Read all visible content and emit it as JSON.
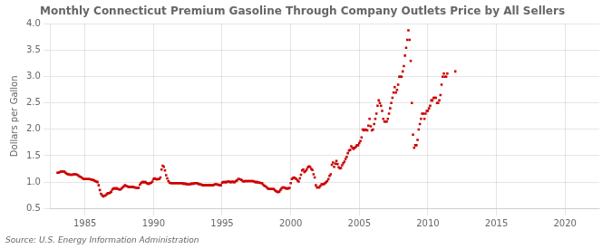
{
  "chart_data": {
    "type": "scatter",
    "title": "Monthly Connecticut Premium Gasoline Through Company Outlets Price by All Sellers",
    "ylabel": "Dollars per Gallon",
    "annotations": [
      "Source: U.S. Energy Information Administration"
    ],
    "color": "#cc0000",
    "marker": "square",
    "grid": true,
    "xlim": [
      1982.5,
      2022.5
    ],
    "ylim": [
      0.5,
      4.0
    ],
    "xticks": [
      1985,
      1990,
      1995,
      2000,
      2005,
      2010,
      2015,
      2020
    ],
    "yticks": [
      0.5,
      {
        "value": 1.0,
        "label": "1.0"
      },
      1.5,
      {
        "value": 2.0,
        "label": "2.0"
      },
      2.5,
      {
        "value": 3.0,
        "label": "3.0"
      },
      3.5,
      {
        "value": 4.0,
        "label": "4.0"
      }
    ],
    "x": [
      1983.0,
      1983.083,
      1983.167,
      1983.25,
      1983.333,
      1983.417,
      1983.5,
      1983.583,
      1983.667,
      1983.75,
      1983.833,
      1983.917,
      1984.0,
      1984.083,
      1984.167,
      1984.25,
      1984.333,
      1984.417,
      1984.5,
      1984.583,
      1984.667,
      1984.75,
      1984.833,
      1984.917,
      1985.0,
      1985.083,
      1985.167,
      1985.25,
      1985.333,
      1985.417,
      1985.5,
      1985.583,
      1985.667,
      1985.75,
      1985.833,
      1985.917,
      1986.0,
      1986.083,
      1986.167,
      1986.25,
      1986.333,
      1986.417,
      1986.5,
      1986.583,
      1986.667,
      1986.75,
      1986.833,
      1986.917,
      1987.0,
      1987.083,
      1987.167,
      1987.25,
      1987.333,
      1987.417,
      1987.5,
      1987.583,
      1987.667,
      1987.75,
      1987.833,
      1987.917,
      1988.0,
      1988.083,
      1988.167,
      1988.25,
      1988.333,
      1988.417,
      1988.5,
      1988.583,
      1988.667,
      1988.75,
      1988.833,
      1988.917,
      1989.0,
      1989.083,
      1989.167,
      1989.25,
      1989.333,
      1989.417,
      1989.5,
      1989.583,
      1989.667,
      1989.75,
      1989.833,
      1989.917,
      1990.0,
      1990.083,
      1990.167,
      1990.25,
      1990.333,
      1990.417,
      1990.5,
      1990.583,
      1990.667,
      1990.75,
      1990.833,
      1990.917,
      1991.0,
      1991.083,
      1991.167,
      1991.25,
      1991.333,
      1991.417,
      1991.5,
      1991.583,
      1991.667,
      1991.75,
      1991.833,
      1991.917,
      1992.0,
      1992.083,
      1992.167,
      1992.25,
      1992.333,
      1992.417,
      1992.5,
      1992.583,
      1992.667,
      1992.75,
      1992.833,
      1992.917,
      1993.0,
      1993.083,
      1993.167,
      1993.25,
      1993.333,
      1993.417,
      1993.5,
      1993.583,
      1993.667,
      1993.75,
      1993.833,
      1993.917,
      1994.0,
      1994.083,
      1994.167,
      1994.25,
      1994.333,
      1994.417,
      1994.5,
      1994.583,
      1994.667,
      1994.75,
      1994.833,
      1994.917,
      1995.0,
      1995.083,
      1995.167,
      1995.25,
      1995.333,
      1995.417,
      1995.5,
      1995.583,
      1995.667,
      1995.75,
      1995.833,
      1995.917,
      1996.0,
      1996.083,
      1996.167,
      1996.25,
      1996.333,
      1996.417,
      1996.5,
      1996.583,
      1996.667,
      1996.75,
      1996.833,
      1996.917,
      1997.0,
      1997.083,
      1997.167,
      1997.25,
      1997.333,
      1997.417,
      1997.5,
      1997.583,
      1997.667,
      1997.75,
      1997.833,
      1997.917,
      1998.0,
      1998.083,
      1998.167,
      1998.25,
      1998.333,
      1998.417,
      1998.5,
      1998.583,
      1998.667,
      1998.75,
      1998.833,
      1998.917,
      1999.0,
      1999.083,
      1999.167,
      1999.25,
      1999.333,
      1999.417,
      1999.5,
      1999.583,
      1999.667,
      1999.75,
      1999.833,
      1999.917,
      2000.0,
      2000.083,
      2000.167,
      2000.25,
      2000.333,
      2000.417,
      2000.5,
      2000.583,
      2000.667,
      2000.75,
      2000.833,
      2000.917,
      2001.0,
      2001.083,
      2001.167,
      2001.25,
      2001.333,
      2001.417,
      2001.5,
      2001.583,
      2001.667,
      2001.75,
      2001.833,
      2001.917,
      2002.0,
      2002.083,
      2002.167,
      2002.25,
      2002.333,
      2002.417,
      2002.5,
      2002.583,
      2002.667,
      2002.75,
      2002.833,
      2002.917,
      2003.0,
      2003.083,
      2003.167,
      2003.25,
      2003.333,
      2003.417,
      2003.5,
      2003.583,
      2003.667,
      2003.75,
      2003.833,
      2003.917,
      2004.0,
      2004.083,
      2004.167,
      2004.25,
      2004.333,
      2004.417,
      2004.5,
      2004.583,
      2004.667,
      2004.75,
      2004.833,
      2004.917,
      2005.0,
      2005.083,
      2005.167,
      2005.25,
      2005.333,
      2005.417,
      2005.5,
      2005.583,
      2005.667,
      2005.75,
      2005.833,
      2005.917,
      2006.0,
      2006.083,
      2006.167,
      2006.25,
      2006.333,
      2006.417,
      2006.5,
      2006.583,
      2006.667,
      2006.75,
      2006.833,
      2006.917,
      2007.0,
      2007.083,
      2007.167,
      2007.25,
      2007.333,
      2007.417,
      2007.5,
      2007.583,
      2007.667,
      2007.75,
      2007.833,
      2007.917,
      2008.0,
      2008.083,
      2008.167,
      2008.25,
      2008.333,
      2008.417,
      2008.5,
      2008.583,
      2008.667,
      2008.75,
      2008.833,
      2008.917,
      2009.0,
      2009.083,
      2009.167,
      2009.25,
      2009.333,
      2009.417,
      2009.5,
      2009.583,
      2009.667,
      2009.75,
      2009.833,
      2009.917,
      2010.0,
      2010.083,
      2010.167,
      2010.25,
      2010.333,
      2010.417,
      2010.5,
      2010.583,
      2010.667,
      2010.75,
      2010.833,
      2010.917,
      2011.0,
      2011.083,
      2011.167,
      2011.25,
      2011.333,
      2011.417,
      2012.0
    ],
    "values": [
      1.179,
      1.179,
      1.189,
      1.199,
      1.199,
      1.199,
      1.199,
      1.179,
      1.159,
      1.149,
      1.149,
      1.139,
      1.139,
      1.139,
      1.149,
      1.149,
      1.149,
      1.139,
      1.129,
      1.109,
      1.099,
      1.089,
      1.069,
      1.059,
      1.059,
      1.059,
      1.059,
      1.059,
      1.059,
      1.049,
      1.049,
      1.039,
      1.029,
      1.019,
      1.009,
      0.999,
      0.939,
      0.849,
      0.779,
      0.749,
      0.729,
      0.739,
      0.749,
      0.769,
      0.789,
      0.789,
      0.799,
      0.819,
      0.859,
      0.879,
      0.879,
      0.879,
      0.879,
      0.869,
      0.859,
      0.859,
      0.879,
      0.899,
      0.919,
      0.939,
      0.929,
      0.919,
      0.909,
      0.909,
      0.909,
      0.909,
      0.909,
      0.899,
      0.899,
      0.889,
      0.889,
      0.889,
      0.949,
      0.979,
      0.999,
      0.999,
      0.999,
      0.999,
      0.979,
      0.969,
      0.969,
      0.979,
      0.989,
      1.009,
      1.059,
      1.069,
      1.059,
      1.049,
      1.059,
      1.059,
      1.089,
      1.239,
      1.309,
      1.289,
      1.219,
      1.129,
      1.069,
      1.019,
      0.989,
      0.979,
      0.979,
      0.979,
      0.979,
      0.979,
      0.979,
      0.979,
      0.979,
      0.979,
      0.979,
      0.979,
      0.969,
      0.969,
      0.969,
      0.959,
      0.959,
      0.959,
      0.959,
      0.969,
      0.969,
      0.969,
      0.979,
      0.979,
      0.979,
      0.969,
      0.959,
      0.959,
      0.949,
      0.939,
      0.939,
      0.939,
      0.939,
      0.939,
      0.939,
      0.939,
      0.939,
      0.939,
      0.939,
      0.949,
      0.959,
      0.959,
      0.949,
      0.949,
      0.939,
      0.939,
      0.989,
      0.999,
      0.999,
      0.999,
      0.999,
      1.009,
      1.009,
      0.999,
      0.999,
      1.009,
      0.999,
      0.999,
      1.019,
      1.029,
      1.059,
      1.059,
      1.049,
      1.039,
      1.019,
      1.009,
      1.019,
      1.019,
      1.019,
      1.019,
      1.019,
      1.019,
      1.019,
      1.019,
      1.009,
      0.999,
      0.999,
      0.999,
      0.989,
      0.989,
      0.979,
      0.979,
      0.949,
      0.929,
      0.919,
      0.899,
      0.879,
      0.869,
      0.869,
      0.869,
      0.869,
      0.869,
      0.849,
      0.829,
      0.819,
      0.809,
      0.819,
      0.849,
      0.879,
      0.899,
      0.899,
      0.889,
      0.879,
      0.879,
      0.879,
      0.889,
      0.979,
      1.059,
      1.079,
      1.089,
      1.069,
      1.059,
      1.029,
      1.009,
      1.069,
      1.139,
      1.219,
      1.239,
      1.189,
      1.209,
      1.239,
      1.279,
      1.299,
      1.289,
      1.249,
      1.229,
      1.149,
      1.089,
      0.939,
      0.899,
      0.899,
      0.899,
      0.929,
      0.959,
      0.959,
      0.959,
      0.979,
      0.999,
      1.019,
      1.059,
      1.119,
      1.149,
      1.329,
      1.369,
      1.289,
      1.349,
      1.399,
      1.339,
      1.279,
      1.259,
      1.269,
      1.319,
      1.359,
      1.389,
      1.439,
      1.479,
      1.549,
      1.599,
      1.609,
      1.679,
      1.649,
      1.629,
      1.649,
      1.669,
      1.699,
      1.699,
      1.739,
      1.779,
      1.849,
      1.999,
      1.979,
      1.999,
      1.989,
      1.979,
      2.069,
      2.199,
      2.059,
      1.979,
      1.999,
      2.099,
      2.199,
      2.299,
      2.449,
      2.549,
      2.499,
      2.449,
      2.349,
      2.199,
      2.149,
      2.149,
      2.149,
      2.199,
      2.299,
      2.399,
      2.499,
      2.599,
      2.699,
      2.799,
      2.699,
      2.749,
      2.849,
      2.999,
      2.999,
      2.999,
      3.099,
      3.199,
      3.399,
      3.549,
      3.699,
      3.879,
      3.699,
      3.299,
      2.499,
      1.899,
      1.649,
      1.699,
      1.699,
      1.799,
      1.999,
      2.099,
      2.199,
      2.299,
      2.299,
      2.199,
      2.299,
      2.349,
      2.349,
      2.399,
      2.449,
      2.549,
      2.549,
      2.599,
      2.599,
      2.599,
      2.499,
      2.499,
      2.549,
      2.649,
      2.849,
      2.999,
      3.059,
      2.999,
      2.999,
      3.059,
      3.099
    ]
  }
}
